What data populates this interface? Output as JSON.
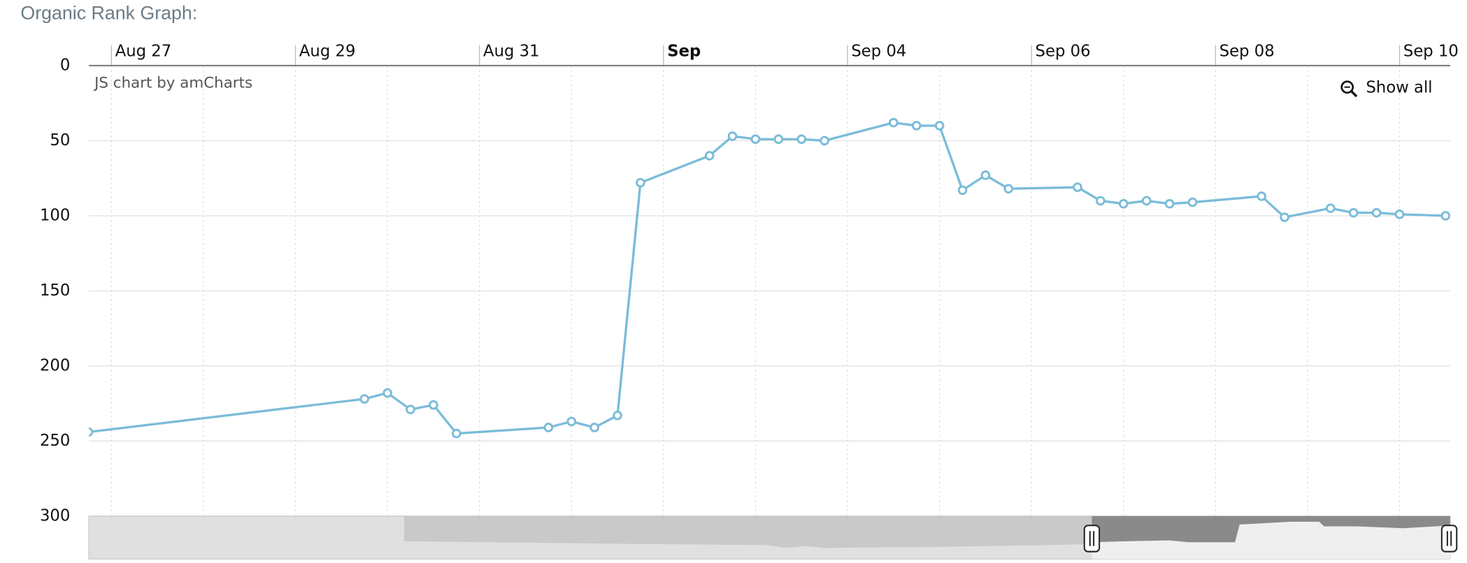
{
  "chart_data": {
    "type": "line",
    "title": "Organic Rank Graph:",
    "credit": "JS chart by amCharts",
    "reset_zoom": "Show all",
    "y_reversed": true,
    "ylim": [
      0,
      300
    ],
    "yticks": [
      0,
      50,
      100,
      150,
      200,
      250,
      300
    ],
    "xlim": [
      -0.245,
      14.55
    ],
    "xticks": [
      {
        "value": 0,
        "label": "Aug 27"
      },
      {
        "value": 2,
        "label": "Aug 29"
      },
      {
        "value": 4,
        "label": "Aug 31"
      },
      {
        "value": 6,
        "label": "Sep"
      },
      {
        "value": 8,
        "label": "Sep 04"
      },
      {
        "value": 10,
        "label": "Sep 06"
      },
      {
        "value": 12,
        "label": "Sep 08"
      },
      {
        "value": 14,
        "label": "Sep 10"
      }
    ],
    "bold_xtick": 3,
    "grid": true,
    "series": [
      {
        "color": "#7bbcd8",
        "x": [
          -0.25,
          2.75,
          3,
          3.25,
          3.5,
          3.75,
          4.75,
          5,
          5.25,
          5.5,
          5.75,
          6.5,
          6.75,
          7,
          7.25,
          7.5,
          7.75,
          8.5,
          8.75,
          9,
          9.25,
          9.5,
          9.75,
          10.5,
          10.75,
          11,
          11.25,
          11.5,
          11.75,
          12.5,
          12.75,
          13.25,
          13.5,
          13.75,
          14,
          14.5
        ],
        "values": [
          244,
          222,
          218,
          229,
          226,
          245,
          241,
          237,
          241,
          233,
          78,
          60,
          47,
          49,
          49,
          49,
          50,
          38,
          40,
          40,
          83,
          73,
          82,
          81,
          90,
          92,
          90,
          92,
          91,
          87,
          101,
          95,
          98,
          98,
          99,
          100
        ]
      }
    ]
  }
}
